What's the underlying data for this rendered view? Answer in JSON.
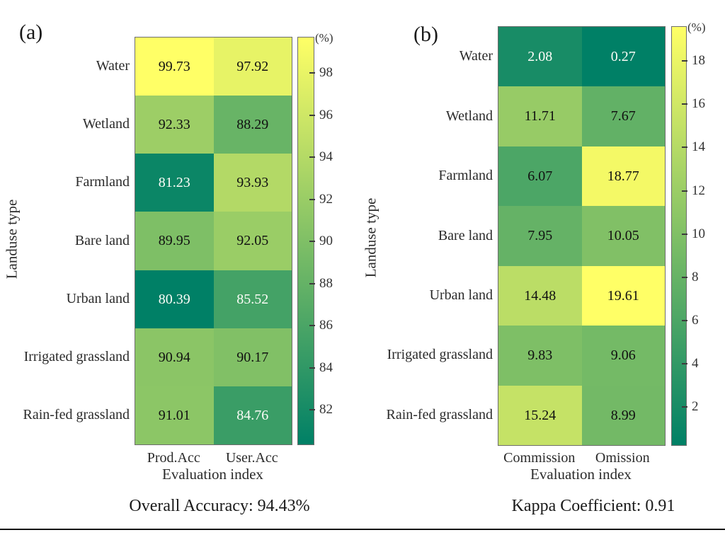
{
  "colors": {
    "colormap": "summer",
    "colormap_start": "#008066",
    "colormap_end": "#FFFF66",
    "cell_text_dark": "#111111",
    "cell_text_light": "#ffffff",
    "axes_border": "#6e6e6e"
  },
  "chart_data": [
    {
      "type": "heatmap",
      "panel_label": "(a)",
      "unit_label": "(%)",
      "xlabel": "Evaluation index",
      "ylabel": "Landuse type",
      "columns": [
        "Prod.Acc",
        "User.Acc"
      ],
      "rows": [
        "Water",
        "Wetland",
        "Farmland",
        "Bare land",
        "Urban land",
        "Irrigated grassland",
        "Rain-fed grassland"
      ],
      "values": [
        [
          99.73,
          97.92
        ],
        [
          92.33,
          88.29
        ],
        [
          81.23,
          93.93
        ],
        [
          89.95,
          92.05
        ],
        [
          80.39,
          85.52
        ],
        [
          90.94,
          90.17
        ],
        [
          91.01,
          84.76
        ]
      ],
      "color_min": 80.39,
      "color_max": 99.73,
      "colorbar_ticks": [
        98,
        96,
        94,
        92,
        90,
        88,
        86,
        84,
        82
      ],
      "annotation": "Overall Accuracy: 94.43%"
    },
    {
      "type": "heatmap",
      "panel_label": "(b)",
      "unit_label": "(%)",
      "xlabel": "Evaluation index",
      "ylabel": "Landuse type",
      "columns": [
        "Commission",
        "Omission"
      ],
      "rows": [
        "Water",
        "Wetland",
        "Farmland",
        "Bare land",
        "Urban land",
        "Irrigated grassland",
        "Rain-fed grassland"
      ],
      "values": [
        [
          2.08,
          0.27
        ],
        [
          11.71,
          7.67
        ],
        [
          6.07,
          18.77
        ],
        [
          7.95,
          10.05
        ],
        [
          14.48,
          19.61
        ],
        [
          9.83,
          9.06
        ],
        [
          15.24,
          8.99
        ]
      ],
      "color_min": 0.27,
      "color_max": 19.61,
      "colorbar_ticks": [
        18,
        16,
        14,
        12,
        10,
        8,
        6,
        4,
        2
      ],
      "annotation": "Kappa Coefficient: 0.91"
    }
  ]
}
